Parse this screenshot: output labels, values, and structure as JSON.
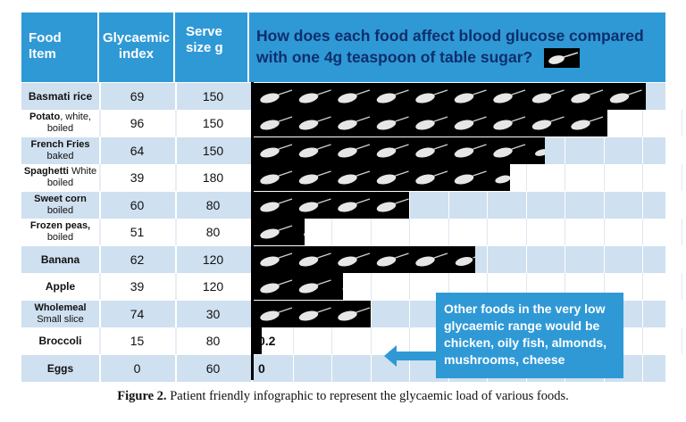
{
  "header": {
    "food_line1": "Food",
    "food_line2": "Item",
    "gi_line1": "Glycaemic",
    "gi_line2": "index",
    "serve_line1": "Serve",
    "serve_line2": "size g",
    "question_line1": "How does each food affect blood glucose compared",
    "question_line2": "with one 4g teaspoon of table sugar?"
  },
  "rows": [
    {
      "name": "Basmati rice",
      "sub": "",
      "gi": "69",
      "serve": "150",
      "load": "10.1",
      "load_value": 10.1
    },
    {
      "name": "Potato",
      "sub_inline": ", white,",
      "sub": "boiled",
      "gi": "96",
      "serve": "150",
      "load": "9.1",
      "load_value": 9.1
    },
    {
      "name": "French Fries",
      "sub": "baked",
      "gi": "64",
      "serve": "150",
      "load": "7.5",
      "load_value": 7.5
    },
    {
      "name": "Spaghetti",
      "sub_inline": " White",
      "sub": "boiled",
      "gi": "39",
      "serve": "180",
      "load": "6.6",
      "load_value": 6.6
    },
    {
      "name": "Sweet corn",
      "sub": "boiled",
      "gi": "60",
      "serve": "80",
      "load": "4.0",
      "load_value": 4.0
    },
    {
      "name": "Frozen peas,",
      "sub": "boiled",
      "gi": "51",
      "serve": "80",
      "load": "1.3",
      "load_value": 1.3
    },
    {
      "name": "Banana",
      "sub": "",
      "gi": "62",
      "serve": "120",
      "load": "5.7",
      "load_value": 5.7
    },
    {
      "name": "Apple",
      "sub": "",
      "gi": "39",
      "serve": "120",
      "load": "2.3",
      "load_value": 2.3
    },
    {
      "name": "Wholemeal",
      "sub": "Small slice",
      "gi": "74",
      "serve": "30",
      "load": "3.0",
      "load_value": 3.0
    },
    {
      "name": "Broccoli",
      "sub": "",
      "gi": "15",
      "serve": "80",
      "load": "0.2",
      "load_value": 0.2
    },
    {
      "name": "Eggs",
      "sub": "",
      "gi": "0",
      "serve": "60",
      "load": "0",
      "load_value": 0
    }
  ],
  "callout": {
    "line1": "Other foods in the very low",
    "line2": "glycaemic range would be",
    "line3": "chicken, oily fish, almonds,",
    "line4": "mushrooms, cheese"
  },
  "caption": {
    "label": "Figure 2.",
    "text": " Patient friendly infographic to represent the glycaemic load of various foods."
  },
  "colors": {
    "header_blue": "#2f99d6",
    "question_text": "#0d2f6c",
    "row_alt": "#cfe0f0",
    "bar": "#000000"
  }
}
